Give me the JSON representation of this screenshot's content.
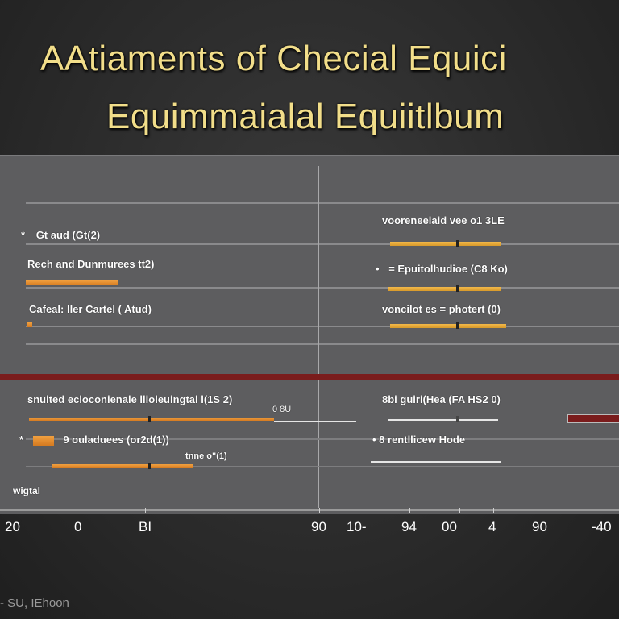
{
  "chart_data": {
    "type": "bar",
    "title": "AAtiaments of Checial Equici",
    "subtitle": "Equimmaialal  Equiitlbum",
    "left_panel_top": [
      {
        "label": "Gt aud (Gt(2)",
        "bullet": "*",
        "value": 0
      },
      {
        "label": "Rech and Dunmurees tt2)",
        "value": 29
      },
      {
        "label": "Cafeal: ller Cartel ( Atud)",
        "value": 1
      }
    ],
    "right_panel_top": [
      {
        "label": "vooreneelaid vee o1 3LE",
        "value": 36
      },
      {
        "label": "= Epuitolhudioe (C8 Ko)",
        "bullet": "•",
        "value": 36
      },
      {
        "label": "voncilot es = photert (0)",
        "value": 36
      }
    ],
    "left_panel_bottom": [
      {
        "label": "snuited ecloconienale llioleuingtal l(1S 2)",
        "value": 80
      },
      {
        "label": "9 ouladuees (or2d(1))",
        "bullet": "*",
        "value": 45
      },
      {
        "label": "tnne o\"(1)",
        "value": 0
      },
      {
        "label": "wigtal",
        "value": 0
      }
    ],
    "right_panel_bottom": [
      {
        "label": "8bi guiri(Hea (FA HS2 0)",
        "value": 34
      },
      {
        "label": "• 8 rentllicew Hode",
        "value": 0
      },
      {
        "label": "0 8U",
        "value": 0
      }
    ],
    "x_tick_labels": [
      "20",
      "0",
      "BI",
      "90",
      "10-",
      "94",
      "00",
      "4",
      "90",
      "-40"
    ],
    "footer": "- SU, IEhoon"
  }
}
